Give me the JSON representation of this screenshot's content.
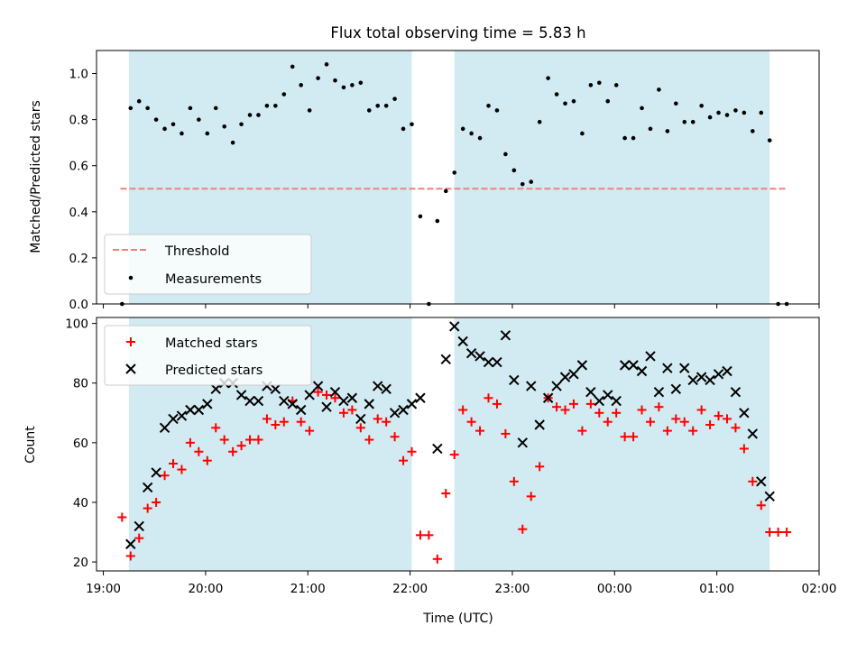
{
  "title": "Flux total observing time = 5.83 h",
  "chart_data": [
    {
      "type": "scatter",
      "ylabel": "Matched/Predicted stars",
      "ylim": [
        0,
        1.1
      ],
      "yticks": [
        "0.0",
        "0.2",
        "0.4",
        "0.6",
        "0.8",
        "1.0"
      ],
      "ytick_values": [
        0,
        0.2,
        0.4,
        0.6,
        0.8,
        1.0
      ],
      "threshold": {
        "name": "Threshold",
        "value": 0.5,
        "x_start": "19:10",
        "x_end": "01:41",
        "color": "#f08080"
      },
      "shaded_intervals": [
        [
          "19:15",
          "22:01"
        ],
        [
          "22:26",
          "01:31"
        ]
      ],
      "shade_color": "#add8e6",
      "legend": {
        "position": "lower-left",
        "entries": [
          "Threshold",
          "Measurements"
        ]
      },
      "series": [
        {
          "name": "Measurements",
          "marker": "dot",
          "color": "#000000",
          "points": [
            [
              "19:11",
              0.0
            ],
            [
              "19:16",
              0.85
            ],
            [
              "19:21",
              0.88
            ],
            [
              "19:26",
              0.85
            ],
            [
              "19:31",
              0.8
            ],
            [
              "19:36",
              0.76
            ],
            [
              "19:41",
              0.78
            ],
            [
              "19:46",
              0.74
            ],
            [
              "19:51",
              0.85
            ],
            [
              "19:56",
              0.8
            ],
            [
              "20:01",
              0.74
            ],
            [
              "20:06",
              0.85
            ],
            [
              "20:11",
              0.77
            ],
            [
              "20:16",
              0.7
            ],
            [
              "20:21",
              0.78
            ],
            [
              "20:26",
              0.82
            ],
            [
              "20:31",
              0.82
            ],
            [
              "20:36",
              0.86
            ],
            [
              "20:41",
              0.86
            ],
            [
              "20:46",
              0.91
            ],
            [
              "20:51",
              1.03
            ],
            [
              "20:56",
              0.95
            ],
            [
              "21:01",
              0.84
            ],
            [
              "21:06",
              0.98
            ],
            [
              "21:11",
              1.04
            ],
            [
              "21:16",
              0.97
            ],
            [
              "21:21",
              0.94
            ],
            [
              "21:26",
              0.95
            ],
            [
              "21:31",
              0.96
            ],
            [
              "21:36",
              0.84
            ],
            [
              "21:41",
              0.86
            ],
            [
              "21:46",
              0.86
            ],
            [
              "21:51",
              0.89
            ],
            [
              "21:56",
              0.76
            ],
            [
              "22:01",
              0.78
            ],
            [
              "22:06",
              0.38
            ],
            [
              "22:11",
              0.0
            ],
            [
              "22:16",
              0.36
            ],
            [
              "22:21",
              0.49
            ],
            [
              "22:26",
              0.57
            ],
            [
              "22:31",
              0.76
            ],
            [
              "22:36",
              0.74
            ],
            [
              "22:41",
              0.72
            ],
            [
              "22:46",
              0.86
            ],
            [
              "22:51",
              0.84
            ],
            [
              "22:56",
              0.65
            ],
            [
              "23:01",
              0.58
            ],
            [
              "23:06",
              0.52
            ],
            [
              "23:11",
              0.53
            ],
            [
              "23:16",
              0.79
            ],
            [
              "23:21",
              0.98
            ],
            [
              "23:26",
              0.91
            ],
            [
              "23:31",
              0.87
            ],
            [
              "23:36",
              0.88
            ],
            [
              "23:41",
              0.74
            ],
            [
              "23:46",
              0.95
            ],
            [
              "23:51",
              0.96
            ],
            [
              "23:56",
              0.88
            ],
            [
              "00:01",
              0.95
            ],
            [
              "00:06",
              0.72
            ],
            [
              "00:11",
              0.72
            ],
            [
              "00:16",
              0.85
            ],
            [
              "00:21",
              0.76
            ],
            [
              "00:26",
              0.93
            ],
            [
              "00:31",
              0.75
            ],
            [
              "00:36",
              0.87
            ],
            [
              "00:41",
              0.79
            ],
            [
              "00:46",
              0.79
            ],
            [
              "00:51",
              0.86
            ],
            [
              "00:56",
              0.81
            ],
            [
              "01:01",
              0.83
            ],
            [
              "01:06",
              0.82
            ],
            [
              "01:11",
              0.84
            ],
            [
              "01:16",
              0.83
            ],
            [
              "01:21",
              0.75
            ],
            [
              "01:26",
              0.83
            ],
            [
              "01:31",
              0.71
            ],
            [
              "01:36",
              0.0
            ],
            [
              "01:41",
              0.0
            ]
          ]
        }
      ]
    },
    {
      "type": "scatter",
      "xlabel": "Time (UTC)",
      "ylabel": "Count",
      "ylim": [
        17,
        102
      ],
      "yticks": [
        "20",
        "40",
        "60",
        "80",
        "100"
      ],
      "ytick_values": [
        20,
        40,
        60,
        80,
        100
      ],
      "x_range": [
        "18:56",
        "02:00"
      ],
      "xticks": [
        "19:00",
        "20:00",
        "21:00",
        "22:00",
        "23:00",
        "00:00",
        "01:00",
        "02:00"
      ],
      "shaded_intervals": [
        [
          "19:15",
          "22:01"
        ],
        [
          "22:26",
          "01:31"
        ]
      ],
      "shade_color": "#add8e6",
      "legend": {
        "position": "top-left",
        "entries": [
          "Matched stars",
          "Predicted stars"
        ]
      },
      "series": [
        {
          "name": "Matched stars",
          "marker": "plus",
          "color": "#ff0000",
          "points": [
            [
              "19:11",
              35
            ],
            [
              "19:16",
              22
            ],
            [
              "19:21",
              28
            ],
            [
              "19:26",
              38
            ],
            [
              "19:31",
              40
            ],
            [
              "19:36",
              49
            ],
            [
              "19:41",
              53
            ],
            [
              "19:46",
              51
            ],
            [
              "19:51",
              60
            ],
            [
              "19:56",
              57
            ],
            [
              "20:01",
              54
            ],
            [
              "20:06",
              65
            ],
            [
              "20:11",
              61
            ],
            [
              "20:16",
              57
            ],
            [
              "20:21",
              59
            ],
            [
              "20:26",
              61
            ],
            [
              "20:31",
              61
            ],
            [
              "20:36",
              68
            ],
            [
              "20:41",
              66
            ],
            [
              "20:46",
              67
            ],
            [
              "20:51",
              74
            ],
            [
              "20:56",
              67
            ],
            [
              "21:01",
              64
            ],
            [
              "21:06",
              77
            ],
            [
              "21:11",
              76
            ],
            [
              "21:16",
              75
            ],
            [
              "21:21",
              70
            ],
            [
              "21:26",
              71
            ],
            [
              "21:31",
              65
            ],
            [
              "21:36",
              61
            ],
            [
              "21:41",
              68
            ],
            [
              "21:46",
              67
            ],
            [
              "21:51",
              62
            ],
            [
              "21:56",
              54
            ],
            [
              "22:01",
              57
            ],
            [
              "22:06",
              29
            ],
            [
              "22:11",
              29
            ],
            [
              "22:16",
              21
            ],
            [
              "22:21",
              43
            ],
            [
              "22:26",
              56
            ],
            [
              "22:31",
              71
            ],
            [
              "22:36",
              67
            ],
            [
              "22:41",
              64
            ],
            [
              "22:46",
              75
            ],
            [
              "22:51",
              73
            ],
            [
              "22:56",
              63
            ],
            [
              "23:01",
              47
            ],
            [
              "23:06",
              31
            ],
            [
              "23:11",
              42
            ],
            [
              "23:16",
              52
            ],
            [
              "23:21",
              75
            ],
            [
              "23:26",
              72
            ],
            [
              "23:31",
              71
            ],
            [
              "23:36",
              73
            ],
            [
              "23:41",
              64
            ],
            [
              "23:46",
              73
            ],
            [
              "23:51",
              70
            ],
            [
              "23:56",
              67
            ],
            [
              "00:01",
              70
            ],
            [
              "00:06",
              62
            ],
            [
              "00:11",
              62
            ],
            [
              "00:16",
              71
            ],
            [
              "00:21",
              67
            ],
            [
              "00:26",
              72
            ],
            [
              "00:31",
              64
            ],
            [
              "00:36",
              68
            ],
            [
              "00:41",
              67
            ],
            [
              "00:46",
              64
            ],
            [
              "00:51",
              71
            ],
            [
              "00:56",
              66
            ],
            [
              "01:01",
              69
            ],
            [
              "01:06",
              68
            ],
            [
              "01:11",
              65
            ],
            [
              "01:16",
              58
            ],
            [
              "01:21",
              47
            ],
            [
              "01:26",
              39
            ],
            [
              "01:31",
              30
            ],
            [
              "01:36",
              30
            ],
            [
              "01:41",
              30
            ]
          ]
        },
        {
          "name": "Predicted stars",
          "marker": "x",
          "color": "#000000",
          "points": [
            [
              "19:16",
              26
            ],
            [
              "19:21",
              32
            ],
            [
              "19:26",
              45
            ],
            [
              "19:31",
              50
            ],
            [
              "19:36",
              65
            ],
            [
              "19:41",
              68
            ],
            [
              "19:46",
              69
            ],
            [
              "19:51",
              71
            ],
            [
              "19:56",
              71
            ],
            [
              "20:01",
              73
            ],
            [
              "20:06",
              78
            ],
            [
              "20:11",
              80
            ],
            [
              "20:16",
              80
            ],
            [
              "20:21",
              76
            ],
            [
              "20:26",
              74
            ],
            [
              "20:31",
              74
            ],
            [
              "20:36",
              79
            ],
            [
              "20:41",
              78
            ],
            [
              "20:46",
              74
            ],
            [
              "20:51",
              73
            ],
            [
              "20:56",
              71
            ],
            [
              "21:01",
              76
            ],
            [
              "21:06",
              79
            ],
            [
              "21:11",
              72
            ],
            [
              "21:16",
              77
            ],
            [
              "21:21",
              74
            ],
            [
              "21:26",
              75
            ],
            [
              "21:31",
              68
            ],
            [
              "21:36",
              73
            ],
            [
              "21:41",
              79
            ],
            [
              "21:46",
              78
            ],
            [
              "21:51",
              70
            ],
            [
              "21:56",
              71
            ],
            [
              "22:01",
              73
            ],
            [
              "22:06",
              75
            ],
            [
              "22:16",
              58
            ],
            [
              "22:21",
              88
            ],
            [
              "22:26",
              99
            ],
            [
              "22:31",
              94
            ],
            [
              "22:36",
              90
            ],
            [
              "22:41",
              89
            ],
            [
              "22:46",
              87
            ],
            [
              "22:51",
              87
            ],
            [
              "22:56",
              96
            ],
            [
              "23:01",
              81
            ],
            [
              "23:06",
              60
            ],
            [
              "23:11",
              79
            ],
            [
              "23:16",
              66
            ],
            [
              "23:21",
              75
            ],
            [
              "23:26",
              79
            ],
            [
              "23:31",
              82
            ],
            [
              "23:36",
              83
            ],
            [
              "23:41",
              86
            ],
            [
              "23:46",
              77
            ],
            [
              "23:51",
              74
            ],
            [
              "23:56",
              76
            ],
            [
              "00:01",
              74
            ],
            [
              "00:06",
              86
            ],
            [
              "00:11",
              86
            ],
            [
              "00:16",
              84
            ],
            [
              "00:21",
              89
            ],
            [
              "00:26",
              77
            ],
            [
              "00:31",
              85
            ],
            [
              "00:36",
              78
            ],
            [
              "00:41",
              85
            ],
            [
              "00:46",
              81
            ],
            [
              "00:51",
              82
            ],
            [
              "00:56",
              81
            ],
            [
              "01:01",
              83
            ],
            [
              "01:06",
              84
            ],
            [
              "01:11",
              77
            ],
            [
              "01:16",
              70
            ],
            [
              "01:21",
              63
            ],
            [
              "01:26",
              47
            ],
            [
              "01:31",
              42
            ]
          ]
        }
      ]
    }
  ]
}
